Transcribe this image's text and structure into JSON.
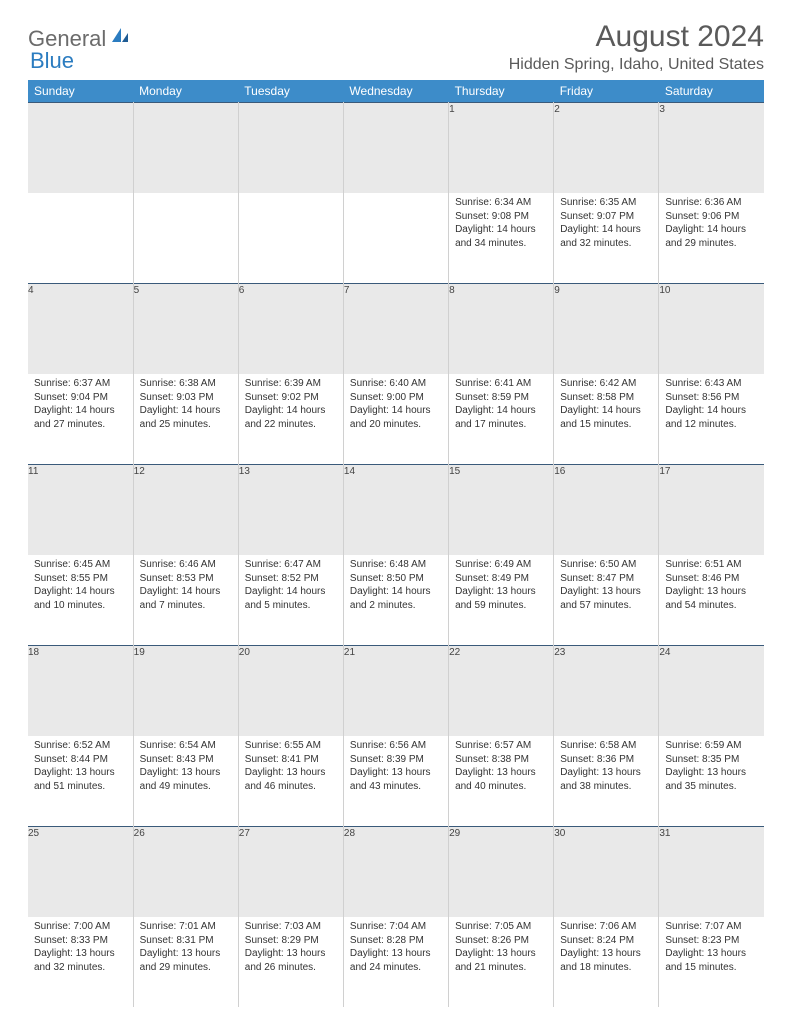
{
  "logo": {
    "text1": "General",
    "text2": "Blue"
  },
  "title": "August 2024",
  "location": "Hidden Spring, Idaho, United States",
  "colors": {
    "header_bg": "#3d8cc9",
    "header_fg": "#ffffff",
    "daynum_bg": "#e9e9e9",
    "daynum_border_top": "#3a5a7a",
    "cell_border": "#d0d0d0",
    "text": "#333333",
    "title_color": "#5a5a5a"
  },
  "day_headers": [
    "Sunday",
    "Monday",
    "Tuesday",
    "Wednesday",
    "Thursday",
    "Friday",
    "Saturday"
  ],
  "weeks": [
    [
      {
        "n": "",
        "sr": "",
        "ss": "",
        "d1": "",
        "d2": ""
      },
      {
        "n": "",
        "sr": "",
        "ss": "",
        "d1": "",
        "d2": ""
      },
      {
        "n": "",
        "sr": "",
        "ss": "",
        "d1": "",
        "d2": ""
      },
      {
        "n": "",
        "sr": "",
        "ss": "",
        "d1": "",
        "d2": ""
      },
      {
        "n": "1",
        "sr": "Sunrise: 6:34 AM",
        "ss": "Sunset: 9:08 PM",
        "d1": "Daylight: 14 hours",
        "d2": "and 34 minutes."
      },
      {
        "n": "2",
        "sr": "Sunrise: 6:35 AM",
        "ss": "Sunset: 9:07 PM",
        "d1": "Daylight: 14 hours",
        "d2": "and 32 minutes."
      },
      {
        "n": "3",
        "sr": "Sunrise: 6:36 AM",
        "ss": "Sunset: 9:06 PM",
        "d1": "Daylight: 14 hours",
        "d2": "and 29 minutes."
      }
    ],
    [
      {
        "n": "4",
        "sr": "Sunrise: 6:37 AM",
        "ss": "Sunset: 9:04 PM",
        "d1": "Daylight: 14 hours",
        "d2": "and 27 minutes."
      },
      {
        "n": "5",
        "sr": "Sunrise: 6:38 AM",
        "ss": "Sunset: 9:03 PM",
        "d1": "Daylight: 14 hours",
        "d2": "and 25 minutes."
      },
      {
        "n": "6",
        "sr": "Sunrise: 6:39 AM",
        "ss": "Sunset: 9:02 PM",
        "d1": "Daylight: 14 hours",
        "d2": "and 22 minutes."
      },
      {
        "n": "7",
        "sr": "Sunrise: 6:40 AM",
        "ss": "Sunset: 9:00 PM",
        "d1": "Daylight: 14 hours",
        "d2": "and 20 minutes."
      },
      {
        "n": "8",
        "sr": "Sunrise: 6:41 AM",
        "ss": "Sunset: 8:59 PM",
        "d1": "Daylight: 14 hours",
        "d2": "and 17 minutes."
      },
      {
        "n": "9",
        "sr": "Sunrise: 6:42 AM",
        "ss": "Sunset: 8:58 PM",
        "d1": "Daylight: 14 hours",
        "d2": "and 15 minutes."
      },
      {
        "n": "10",
        "sr": "Sunrise: 6:43 AM",
        "ss": "Sunset: 8:56 PM",
        "d1": "Daylight: 14 hours",
        "d2": "and 12 minutes."
      }
    ],
    [
      {
        "n": "11",
        "sr": "Sunrise: 6:45 AM",
        "ss": "Sunset: 8:55 PM",
        "d1": "Daylight: 14 hours",
        "d2": "and 10 minutes."
      },
      {
        "n": "12",
        "sr": "Sunrise: 6:46 AM",
        "ss": "Sunset: 8:53 PM",
        "d1": "Daylight: 14 hours",
        "d2": "and 7 minutes."
      },
      {
        "n": "13",
        "sr": "Sunrise: 6:47 AM",
        "ss": "Sunset: 8:52 PM",
        "d1": "Daylight: 14 hours",
        "d2": "and 5 minutes."
      },
      {
        "n": "14",
        "sr": "Sunrise: 6:48 AM",
        "ss": "Sunset: 8:50 PM",
        "d1": "Daylight: 14 hours",
        "d2": "and 2 minutes."
      },
      {
        "n": "15",
        "sr": "Sunrise: 6:49 AM",
        "ss": "Sunset: 8:49 PM",
        "d1": "Daylight: 13 hours",
        "d2": "and 59 minutes."
      },
      {
        "n": "16",
        "sr": "Sunrise: 6:50 AM",
        "ss": "Sunset: 8:47 PM",
        "d1": "Daylight: 13 hours",
        "d2": "and 57 minutes."
      },
      {
        "n": "17",
        "sr": "Sunrise: 6:51 AM",
        "ss": "Sunset: 8:46 PM",
        "d1": "Daylight: 13 hours",
        "d2": "and 54 minutes."
      }
    ],
    [
      {
        "n": "18",
        "sr": "Sunrise: 6:52 AM",
        "ss": "Sunset: 8:44 PM",
        "d1": "Daylight: 13 hours",
        "d2": "and 51 minutes."
      },
      {
        "n": "19",
        "sr": "Sunrise: 6:54 AM",
        "ss": "Sunset: 8:43 PM",
        "d1": "Daylight: 13 hours",
        "d2": "and 49 minutes."
      },
      {
        "n": "20",
        "sr": "Sunrise: 6:55 AM",
        "ss": "Sunset: 8:41 PM",
        "d1": "Daylight: 13 hours",
        "d2": "and 46 minutes."
      },
      {
        "n": "21",
        "sr": "Sunrise: 6:56 AM",
        "ss": "Sunset: 8:39 PM",
        "d1": "Daylight: 13 hours",
        "d2": "and 43 minutes."
      },
      {
        "n": "22",
        "sr": "Sunrise: 6:57 AM",
        "ss": "Sunset: 8:38 PM",
        "d1": "Daylight: 13 hours",
        "d2": "and 40 minutes."
      },
      {
        "n": "23",
        "sr": "Sunrise: 6:58 AM",
        "ss": "Sunset: 8:36 PM",
        "d1": "Daylight: 13 hours",
        "d2": "and 38 minutes."
      },
      {
        "n": "24",
        "sr": "Sunrise: 6:59 AM",
        "ss": "Sunset: 8:35 PM",
        "d1": "Daylight: 13 hours",
        "d2": "and 35 minutes."
      }
    ],
    [
      {
        "n": "25",
        "sr": "Sunrise: 7:00 AM",
        "ss": "Sunset: 8:33 PM",
        "d1": "Daylight: 13 hours",
        "d2": "and 32 minutes."
      },
      {
        "n": "26",
        "sr": "Sunrise: 7:01 AM",
        "ss": "Sunset: 8:31 PM",
        "d1": "Daylight: 13 hours",
        "d2": "and 29 minutes."
      },
      {
        "n": "27",
        "sr": "Sunrise: 7:03 AM",
        "ss": "Sunset: 8:29 PM",
        "d1": "Daylight: 13 hours",
        "d2": "and 26 minutes."
      },
      {
        "n": "28",
        "sr": "Sunrise: 7:04 AM",
        "ss": "Sunset: 8:28 PM",
        "d1": "Daylight: 13 hours",
        "d2": "and 24 minutes."
      },
      {
        "n": "29",
        "sr": "Sunrise: 7:05 AM",
        "ss": "Sunset: 8:26 PM",
        "d1": "Daylight: 13 hours",
        "d2": "and 21 minutes."
      },
      {
        "n": "30",
        "sr": "Sunrise: 7:06 AM",
        "ss": "Sunset: 8:24 PM",
        "d1": "Daylight: 13 hours",
        "d2": "and 18 minutes."
      },
      {
        "n": "31",
        "sr": "Sunrise: 7:07 AM",
        "ss": "Sunset: 8:23 PM",
        "d1": "Daylight: 13 hours",
        "d2": "and 15 minutes."
      }
    ]
  ]
}
